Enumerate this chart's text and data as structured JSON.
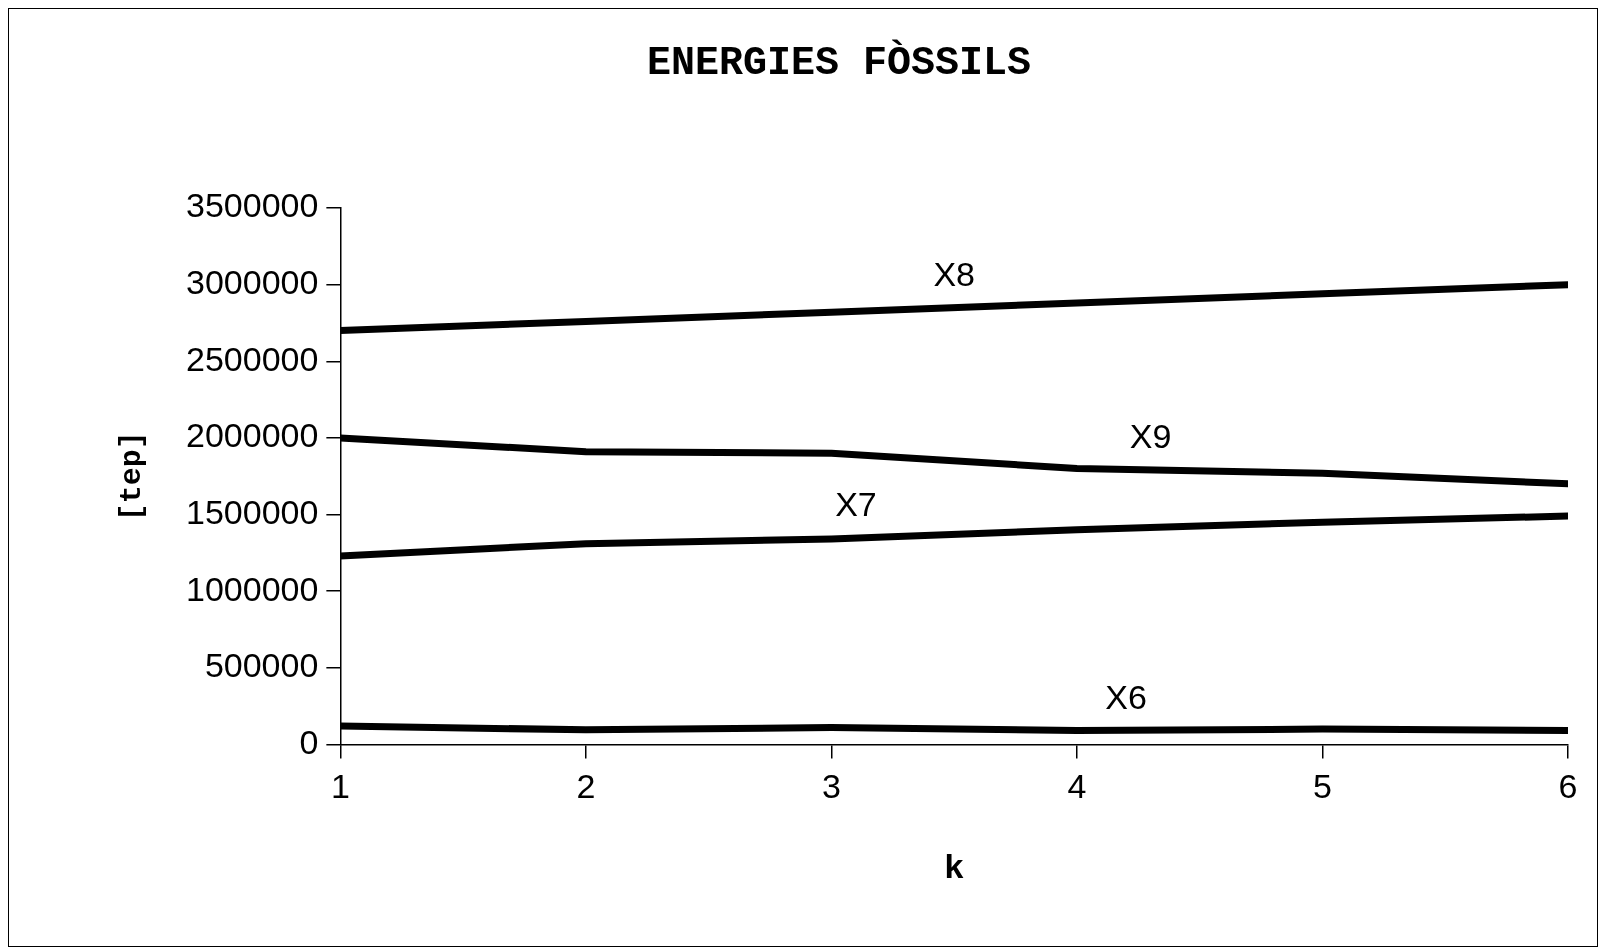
{
  "chart_data": {
    "type": "line",
    "title": "ENERGIES FÒSSILS",
    "xlabel": "k",
    "ylabel": "[tep]",
    "x": [
      1,
      2,
      3,
      4,
      5,
      6
    ],
    "series": [
      {
        "name": "X6",
        "color": "#000000",
        "values": [
          120000,
          95000,
          110000,
          90000,
          100000,
          90000
        ]
      },
      {
        "name": "X7",
        "color": "#000000",
        "values": [
          1230000,
          1310000,
          1340000,
          1400000,
          1450000,
          1490000
        ]
      },
      {
        "name": "X8",
        "color": "#000000",
        "values": [
          2700000,
          2760000,
          2820000,
          2880000,
          2940000,
          3000000
        ]
      },
      {
        "name": "X9",
        "color": "#000000",
        "values": [
          2000000,
          1910000,
          1900000,
          1800000,
          1770000,
          1700000
        ]
      }
    ],
    "xlim": [
      1,
      6
    ],
    "xticks": [
      1,
      2,
      3,
      4,
      5,
      6
    ],
    "ylim": [
      0,
      3500000
    ],
    "yticks": [
      0,
      500000,
      1000000,
      1500000,
      2000000,
      2500000,
      3000000,
      3500000
    ],
    "grid": false,
    "legend": false,
    "marker": "none",
    "line_style": "solid"
  }
}
